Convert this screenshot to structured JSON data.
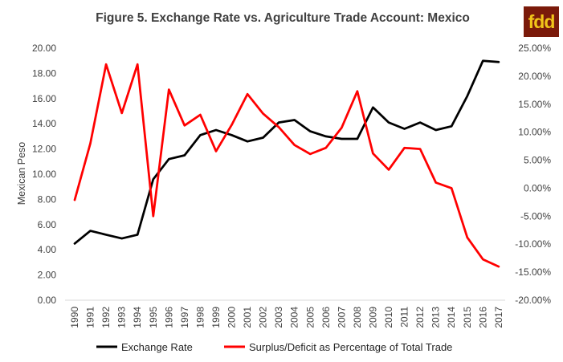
{
  "chart_data": {
    "type": "line",
    "title": "Figure 5. Exchange Rate vs. Agriculture  Trade Account: Mexico",
    "ylabel": "Mexican Peso",
    "xlabel": "",
    "categories": [
      "1990",
      "1991",
      "1992",
      "1993",
      "1994",
      "1995",
      "1996",
      "1997",
      "1998",
      "1999",
      "2000",
      "2001",
      "2002",
      "2003",
      "2004",
      "2005",
      "2006",
      "2007",
      "2008",
      "2009",
      "2010",
      "2011",
      "2012",
      "2013",
      "2014",
      "2015",
      "2016",
      "2017"
    ],
    "ylim": [
      0,
      20
    ],
    "y_ticks": [
      "0.00",
      "2.00",
      "4.00",
      "6.00",
      "8.00",
      "10.00",
      "12.00",
      "14.00",
      "16.00",
      "18.00",
      "20.00"
    ],
    "y2lim": [
      -0.2,
      0.25
    ],
    "y2_ticks": [
      "-20.00%",
      "-15.00%",
      "-10.00%",
      "-5.00%",
      "0.00%",
      "5.00%",
      "10.00%",
      "15.00%",
      "20.00%",
      "25.00%"
    ],
    "grid": false,
    "legend_position": "bottom",
    "series": [
      {
        "name": "Exchange Rate",
        "axis": "left",
        "color": "#000000",
        "values": [
          4.5,
          5.5,
          5.2,
          4.9,
          5.2,
          9.6,
          11.2,
          11.5,
          13.1,
          13.5,
          13.1,
          12.6,
          12.9,
          14.1,
          14.3,
          13.4,
          13.0,
          12.8,
          12.8,
          15.3,
          14.1,
          13.6,
          14.1,
          13.5,
          13.8,
          16.2,
          19.0,
          18.9
        ]
      },
      {
        "name": "Surplus/Deficit as Percentage of Total Trade",
        "axis": "right",
        "color": "#ff0000",
        "values": [
          -0.021,
          0.08,
          0.221,
          0.134,
          0.221,
          -0.05,
          0.176,
          0.112,
          0.131,
          0.066,
          0.113,
          0.168,
          0.133,
          0.109,
          0.077,
          0.061,
          0.072,
          0.108,
          0.173,
          0.062,
          0.033,
          0.072,
          0.07,
          0.01,
          0.0,
          -0.088,
          -0.127,
          -0.14
        ]
      }
    ]
  },
  "logo": {
    "text": "fdd"
  }
}
